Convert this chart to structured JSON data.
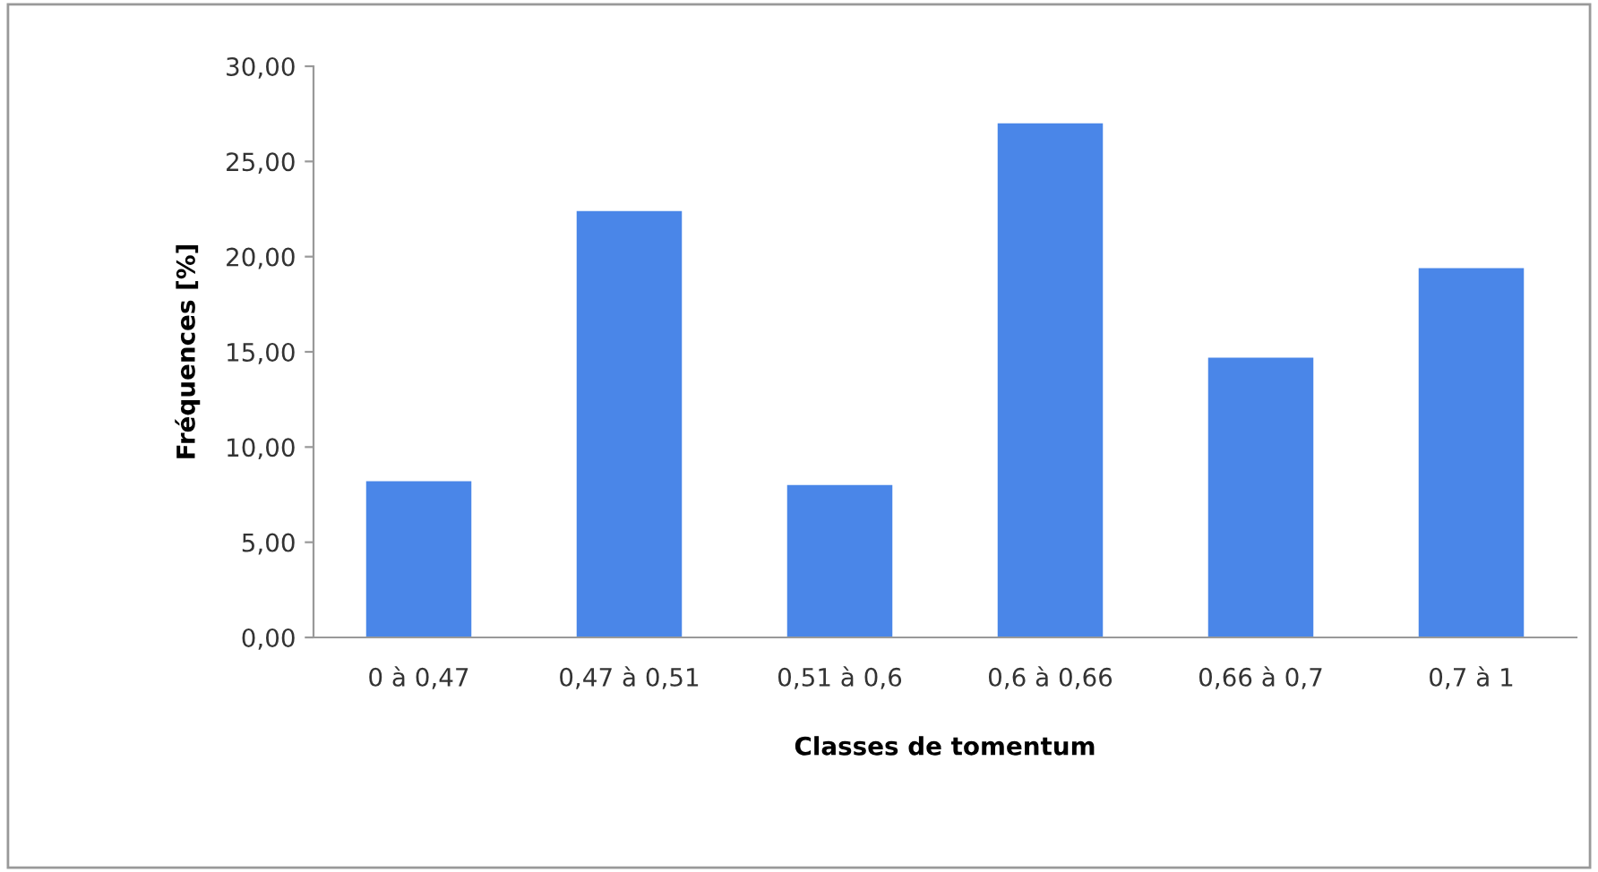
{
  "chart_data": {
    "type": "bar",
    "xlabel": "Classes de tomentum",
    "ylabel": "Fréquences [%]",
    "categories": [
      "0 à 0,47",
      "0,47 à 0,51",
      "0,51 à 0,6",
      "0,6 à 0,66",
      "0,66 à 0,7",
      "0,7 à 1"
    ],
    "values": [
      8.2,
      22.4,
      8.0,
      27.0,
      14.7,
      19.4
    ],
    "color": "#4a86e8",
    "ylim": [
      0,
      30
    ],
    "yticks": [
      {
        "value": 0,
        "label": "0,00"
      },
      {
        "value": 5,
        "label": "5,00"
      },
      {
        "value": 10,
        "label": "10,00"
      },
      {
        "value": 15,
        "label": "15,00"
      },
      {
        "value": 20,
        "label": "20,00"
      },
      {
        "value": 25,
        "label": "25,00"
      },
      {
        "value": 30,
        "label": "30,00"
      }
    ],
    "grid": false
  }
}
